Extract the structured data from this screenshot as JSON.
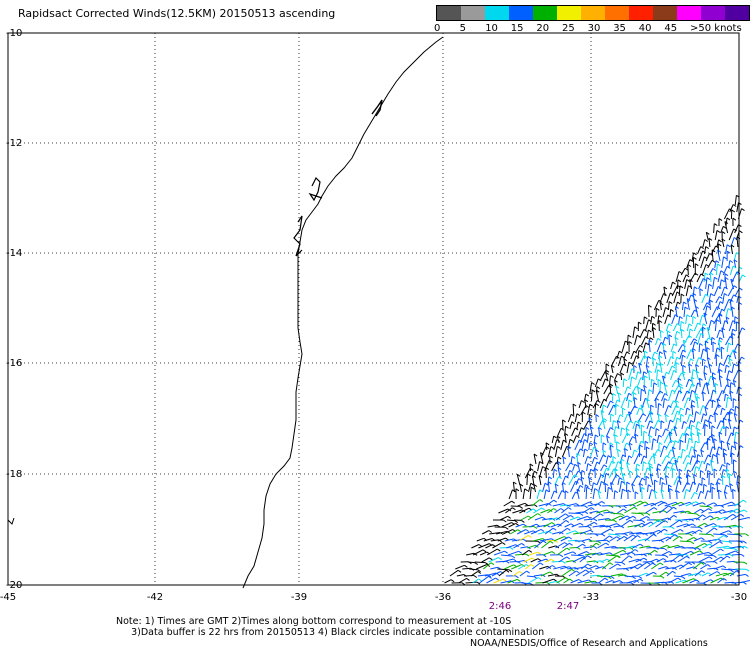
{
  "title": "Rapidsact Corrected Winds(12.5KM) 20150513 ascending",
  "legend": {
    "colors": [
      "#555555",
      "#9a9a9a",
      "#00d8f0",
      "#0060ff",
      "#00b000",
      "#f0f000",
      "#ffb000",
      "#ff7000",
      "#ff2000",
      "#8b3a1a",
      "#ff00ff",
      "#9000d0",
      "#5000a0"
    ],
    "labels": [
      "0",
      "5",
      "10",
      "15",
      "20",
      "25",
      "30",
      "35",
      "40",
      "45",
      ">50 knots"
    ]
  },
  "axes": {
    "y_labels": [
      "-10",
      "-12",
      "-14",
      "-16",
      "-18",
      "-20"
    ],
    "x_labels": [
      "-45",
      "-42",
      "-39",
      "-36",
      "-33",
      "-30"
    ]
  },
  "times": [
    "2:46",
    "2:47"
  ],
  "notes": {
    "line1": "Note: 1) Times are GMT 2)Times along bottom correspond to measurement at -10S",
    "line2": "3)Data buffer is 22 hrs from 20150513 4) Black circles indicate possible contamination"
  },
  "credit": "NOAA/NESDIS/Office of Research and Applications"
}
